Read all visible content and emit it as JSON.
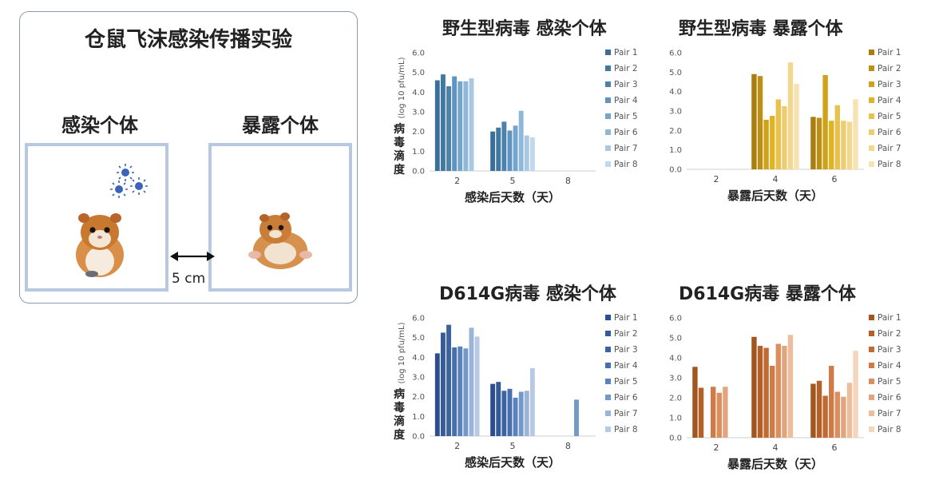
{
  "diagram": {
    "title": "仓鼠飞沫感染传播实验",
    "infected_label": "感染个体",
    "exposed_label": "暴露个体",
    "distance_label": "5 cm"
  },
  "legend_labels": [
    "Pair 1",
    "Pair 2",
    "Pair 3",
    "Pair 4",
    "Pair 5",
    "Pair 6",
    "Pair 7",
    "Pair 8"
  ],
  "y_axis_label_small": "(log 10 pfu/mL)",
  "y_axis_label_chars": [
    "病",
    "毒",
    "滴",
    "度"
  ],
  "y_ticks": [
    "6.0",
    "5.0",
    "4.0",
    "3.0",
    "2.0",
    "1.0",
    "0.0"
  ],
  "chart_data": [
    {
      "id": "wt-infected",
      "type": "bar",
      "title": "野生型病毒  感染个体",
      "xlabel": "感染后天数（天）",
      "ylabel": "(log 10 pfu/mL) 病毒滴度",
      "ylim": [
        0,
        6
      ],
      "categories": [
        "2",
        "5",
        "8"
      ],
      "palette": [
        "#3a6f9c",
        "#41789f",
        "#4b82ac",
        "#5f94c0",
        "#74a5cc",
        "#8fb7d8",
        "#a9c8e3",
        "#c2d8ec"
      ],
      "series": [
        {
          "name": "Pair 1",
          "values": [
            4.6,
            2.0,
            null
          ]
        },
        {
          "name": "Pair 2",
          "values": [
            4.9,
            2.2,
            null
          ]
        },
        {
          "name": "Pair 3",
          "values": [
            4.3,
            2.5,
            null
          ]
        },
        {
          "name": "Pair 4",
          "values": [
            4.8,
            2.05,
            null
          ]
        },
        {
          "name": "Pair 5",
          "values": [
            4.55,
            2.3,
            null
          ]
        },
        {
          "name": "Pair 6",
          "values": [
            4.55,
            3.05,
            null
          ]
        },
        {
          "name": "Pair 7",
          "values": [
            4.7,
            1.8,
            null
          ]
        },
        {
          "name": "Pair 8",
          "values": [
            null,
            1.7,
            null
          ]
        }
      ],
      "legend": "right"
    },
    {
      "id": "wt-exposed",
      "type": "bar",
      "title": "野生型病毒  暴露个体",
      "xlabel": "暴露后天数（天）",
      "ylabel": "",
      "ylim": [
        0,
        6
      ],
      "categories": [
        "2",
        "4",
        "6"
      ],
      "palette": [
        "#a97d0e",
        "#bd8f12",
        "#cfa319",
        "#e0b323",
        "#e8c24e",
        "#eecd6f",
        "#f2d88e",
        "#f6e3b0"
      ],
      "series": [
        {
          "name": "Pair 1",
          "values": [
            null,
            4.9,
            2.7
          ]
        },
        {
          "name": "Pair 2",
          "values": [
            null,
            4.8,
            2.65
          ]
        },
        {
          "name": "Pair 3",
          "values": [
            null,
            2.55,
            4.85
          ]
        },
        {
          "name": "Pair 4",
          "values": [
            null,
            2.75,
            2.5
          ]
        },
        {
          "name": "Pair 5",
          "values": [
            null,
            3.6,
            3.3
          ]
        },
        {
          "name": "Pair 6",
          "values": [
            null,
            3.25,
            2.5
          ]
        },
        {
          "name": "Pair 7",
          "values": [
            null,
            5.5,
            2.45
          ]
        },
        {
          "name": "Pair 8",
          "values": [
            null,
            4.4,
            3.6
          ]
        }
      ],
      "legend": "right"
    },
    {
      "id": "d614g-infected",
      "type": "bar",
      "title": "D614G病毒  感染个体",
      "xlabel": "感染后天数（天）",
      "ylabel": "(log 10 pfu/mL) 病毒滴度",
      "ylim": [
        0,
        6
      ],
      "categories": [
        "2",
        "5",
        "8"
      ],
      "palette": [
        "#2c4e8e",
        "#345a98",
        "#3b63a2",
        "#476fae",
        "#5a82bc",
        "#7498ca",
        "#9bb4d9",
        "#b8c9e6"
      ],
      "series": [
        {
          "name": "Pair 1",
          "values": [
            4.2,
            2.65,
            null
          ]
        },
        {
          "name": "Pair 2",
          "values": [
            5.25,
            2.75,
            null
          ]
        },
        {
          "name": "Pair 3",
          "values": [
            5.65,
            2.3,
            null
          ]
        },
        {
          "name": "Pair 4",
          "values": [
            4.5,
            2.4,
            null
          ]
        },
        {
          "name": "Pair 5",
          "values": [
            4.55,
            1.95,
            null
          ]
        },
        {
          "name": "Pair 6",
          "values": [
            4.45,
            2.25,
            1.85
          ]
        },
        {
          "name": "Pair 7",
          "values": [
            5.5,
            2.3,
            null
          ]
        },
        {
          "name": "Pair 8",
          "values": [
            5.05,
            3.45,
            null
          ]
        }
      ],
      "legend": "right"
    },
    {
      "id": "d614g-exposed",
      "type": "bar",
      "title": "D614G病毒  暴露个体",
      "xlabel": "暴露后天数（天）",
      "ylabel": "",
      "ylim": [
        0,
        6
      ],
      "categories": [
        "2",
        "4",
        "6"
      ],
      "palette": [
        "#a3551f",
        "#b65f26",
        "#c26a32",
        "#cd7c48",
        "#d98f60",
        "#e4a57e",
        "#eebd9c",
        "#f6d5bd"
      ],
      "series": [
        {
          "name": "Pair 1",
          "values": [
            3.55,
            5.05,
            2.7
          ]
        },
        {
          "name": "Pair 2",
          "values": [
            2.5,
            4.6,
            2.85
          ]
        },
        {
          "name": "Pair 3",
          "values": [
            null,
            4.5,
            2.1
          ]
        },
        {
          "name": "Pair 4",
          "values": [
            2.55,
            3.6,
            3.6
          ]
        },
        {
          "name": "Pair 5",
          "values": [
            2.25,
            4.7,
            2.3
          ]
        },
        {
          "name": "Pair 6",
          "values": [
            2.55,
            4.6,
            2.05
          ]
        },
        {
          "name": "Pair 7",
          "values": [
            null,
            5.15,
            2.75
          ]
        },
        {
          "name": "Pair 8",
          "values": [
            null,
            null,
            4.35
          ]
        }
      ],
      "legend": "right"
    }
  ]
}
